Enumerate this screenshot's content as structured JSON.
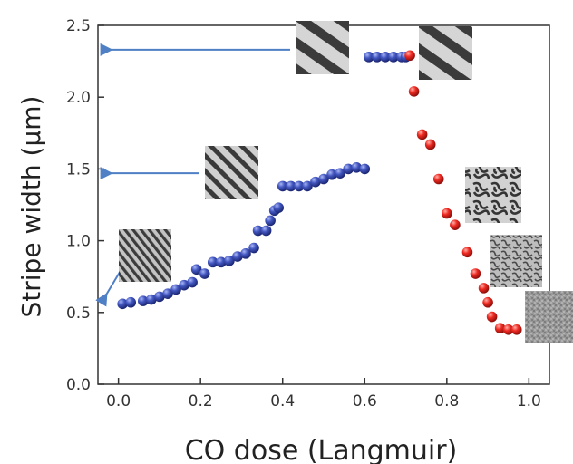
{
  "chart_data": {
    "type": "scatter",
    "xlabel": "CO dose (Langmuir)",
    "ylabel": "Stripe width (µm)",
    "xlim": [
      -0.05,
      1.05
    ],
    "ylim": [
      0.0,
      2.5
    ],
    "x_ticks": [
      "0.0",
      "0.2",
      "0.4",
      "0.6",
      "0.8",
      "1.0"
    ],
    "y_ticks": [
      "0.0",
      "0.5",
      "1.0",
      "1.5",
      "2.0",
      "2.5"
    ],
    "grid": false,
    "legend": "none",
    "series": [
      {
        "color": "#3d4fb0",
        "points": [
          [
            0.01,
            0.56
          ],
          [
            0.03,
            0.57
          ],
          [
            0.06,
            0.58
          ],
          [
            0.08,
            0.59
          ],
          [
            0.1,
            0.61
          ],
          [
            0.12,
            0.63
          ],
          [
            0.14,
            0.66
          ],
          [
            0.16,
            0.69
          ],
          [
            0.18,
            0.71
          ],
          [
            0.19,
            0.8
          ],
          [
            0.21,
            0.77
          ],
          [
            0.23,
            0.85
          ],
          [
            0.25,
            0.85
          ],
          [
            0.27,
            0.86
          ],
          [
            0.29,
            0.89
          ],
          [
            0.31,
            0.91
          ],
          [
            0.33,
            0.95
          ],
          [
            0.34,
            1.07
          ],
          [
            0.36,
            1.07
          ],
          [
            0.37,
            1.14
          ],
          [
            0.38,
            1.21
          ],
          [
            0.39,
            1.23
          ],
          [
            0.4,
            1.38
          ],
          [
            0.42,
            1.38
          ],
          [
            0.44,
            1.38
          ],
          [
            0.46,
            1.38
          ],
          [
            0.48,
            1.41
          ],
          [
            0.5,
            1.43
          ],
          [
            0.52,
            1.46
          ],
          [
            0.54,
            1.47
          ],
          [
            0.56,
            1.5
          ],
          [
            0.58,
            1.51
          ],
          [
            0.6,
            1.5
          ],
          [
            0.61,
            2.28
          ],
          [
            0.63,
            2.28
          ],
          [
            0.65,
            2.28
          ],
          [
            0.67,
            2.28
          ],
          [
            0.69,
            2.28
          ],
          [
            0.7,
            2.28
          ]
        ]
      },
      {
        "color": "#e0221f",
        "points": [
          [
            0.71,
            2.29
          ],
          [
            0.72,
            2.04
          ],
          [
            0.74,
            1.74
          ],
          [
            0.76,
            1.67
          ],
          [
            0.78,
            1.43
          ],
          [
            0.8,
            1.19
          ],
          [
            0.82,
            1.11
          ],
          [
            0.85,
            0.92
          ],
          [
            0.87,
            0.77
          ],
          [
            0.89,
            0.67
          ],
          [
            0.9,
            0.57
          ],
          [
            0.91,
            0.47
          ],
          [
            0.93,
            0.39
          ],
          [
            0.95,
            0.38
          ],
          [
            0.97,
            0.38
          ]
        ]
      }
    ],
    "insets": [
      {
        "name": "inset-fine-labyrinth-stripes",
        "pattern": "fine-stripes",
        "points_to_y": 0.57
      },
      {
        "name": "inset-medium-stripes",
        "pattern": "medium-stripes",
        "points_to_y": 1.47
      },
      {
        "name": "inset-wide-stripes-left",
        "pattern": "wide-stripes",
        "points_to_y": 2.33
      },
      {
        "name": "inset-wide-stripes-right",
        "pattern": "wide-stripes"
      },
      {
        "name": "inset-labyrinth",
        "pattern": "labyrinth"
      },
      {
        "name": "inset-fine-labyrinth",
        "pattern": "fine-labyrinth"
      },
      {
        "name": "inset-noise",
        "pattern": "noise"
      }
    ],
    "arrow_color": "#4f7fc4"
  }
}
